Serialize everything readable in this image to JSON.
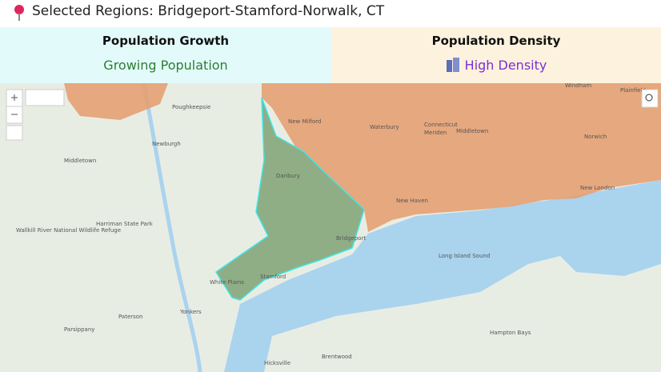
{
  "header": {
    "title": "Selected Regions: Bridgeport-Stamford-Norwalk, CT"
  },
  "panels": [
    {
      "title": "Population Growth",
      "status": "Growing Population"
    },
    {
      "title": "Population Density",
      "status": "High Density"
    }
  ],
  "map": {
    "labels": [
      "Poughkeepsie",
      "Newburgh",
      "Middletown",
      "New Milford",
      "Waterbury",
      "Connecticut",
      "Meriden",
      "Middletown",
      "Danbury",
      "Bridgeport",
      "New Haven",
      "Norwich",
      "New London",
      "Windham",
      "Plainfield",
      "Stamford",
      "White Plains",
      "Yonkers",
      "Paterson",
      "Parsippany",
      "Long Island Sound",
      "Hampton Bays",
      "Brentwood",
      "Hicksville",
      "Wallkill River National Wildlife Refuge",
      "Harriman State Park"
    ]
  }
}
